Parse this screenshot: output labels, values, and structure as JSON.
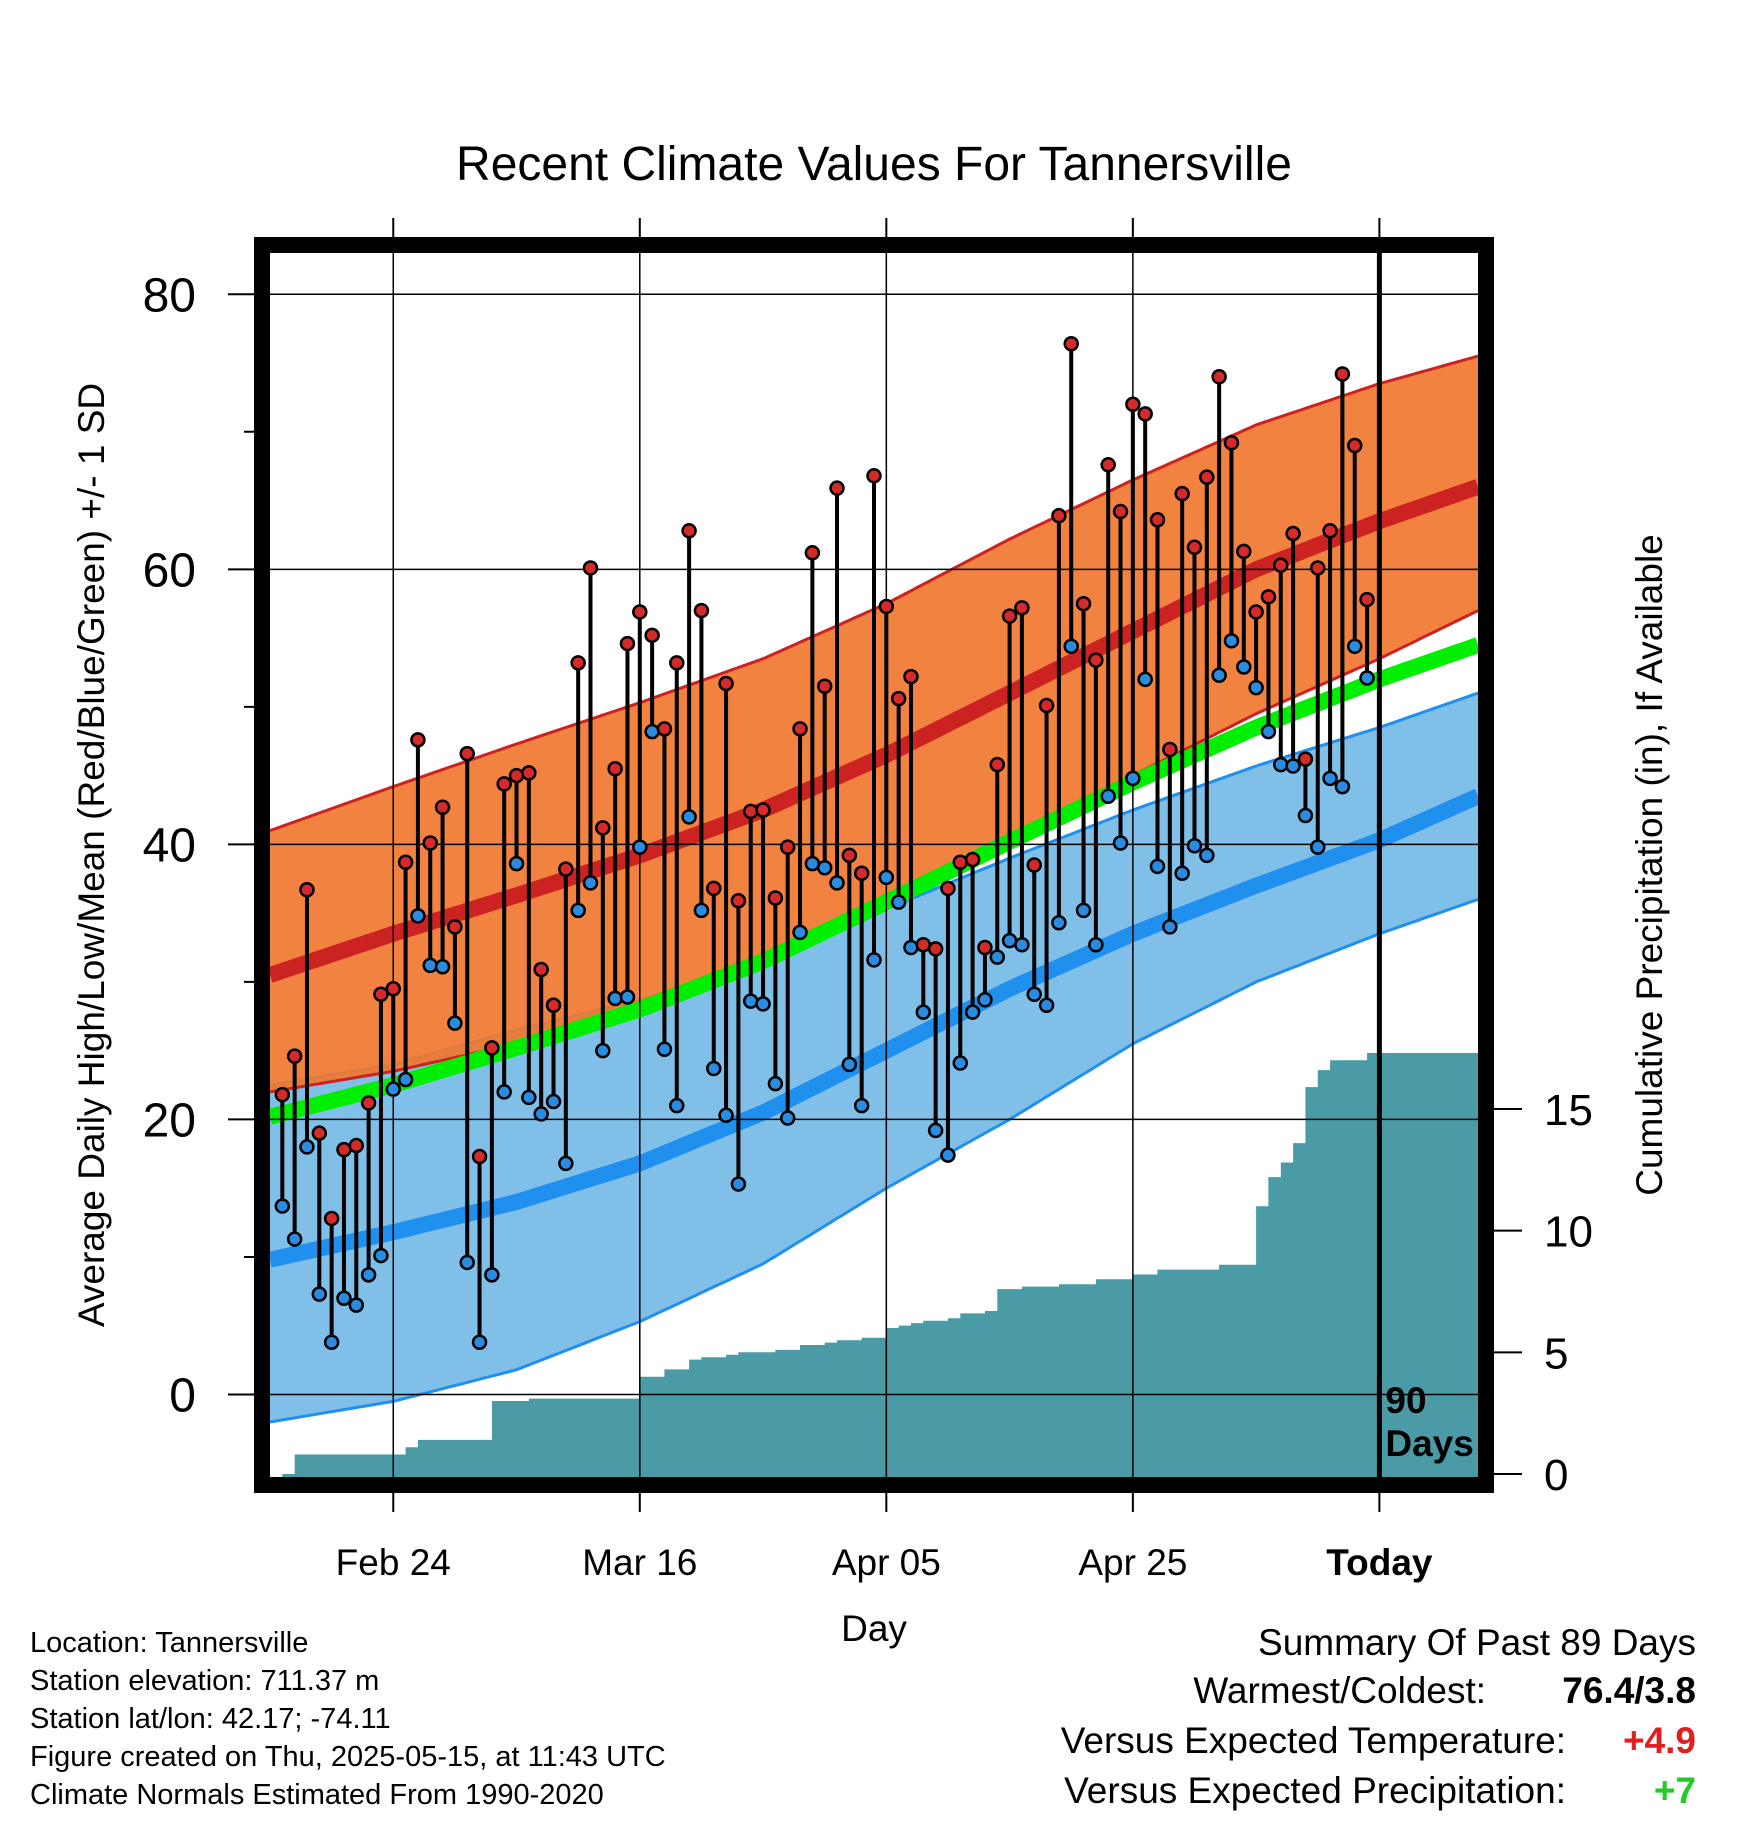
{
  "title": "Recent Climate Values For Tannersville",
  "colors": {
    "orange_band": "#f07830",
    "red_mean": "#cc2222",
    "blue_band": "#80c0e8",
    "blue_mean": "#2090ee",
    "green_mean": "#00ee00",
    "precip_fill": "#4a9ba5",
    "warm_text": "#e02020",
    "wet_text": "#22cc22"
  },
  "info": {
    "location": "Location: Tannersville",
    "elevation": "Station elevation: 711.37 m",
    "latlon": "Station lat/lon: 42.17; -74.11",
    "created": "Figure created on Thu, 2025-05-15, at 11:43 UTC",
    "normals": "Climate Normals Estimated From 1990-2020"
  },
  "summary": {
    "heading": "Summary Of Past 89 Days",
    "warmest_label": "Warmest/Coldest:",
    "warmest_value": "76.4/3.8",
    "temp_label": "Versus Expected Temperature:",
    "temp_value": "+4.9",
    "precip_label": "Versus Expected Precipitation:",
    "precip_value": "+7"
  },
  "chart_data": {
    "type": "line",
    "title": "Recent Climate Values For Tannersville",
    "xlabel": "Day",
    "ylabel": "Average Daily High/Low/Mean (Red/Blue/Green) +/- 1 SD",
    "y2label": "Cumulative Precipitation (in), If Available",
    "xlim": [
      -89,
      9
    ],
    "ylim": [
      -6,
      83
    ],
    "y2lim": [
      0,
      20
    ],
    "x_ticks": [
      {
        "x": -79,
        "label": "Feb 24"
      },
      {
        "x": -59,
        "label": "Mar 16"
      },
      {
        "x": -39,
        "label": "Apr 05"
      },
      {
        "x": -19,
        "label": "Apr 25"
      },
      {
        "x": 1,
        "label": "Today"
      }
    ],
    "y_ticks": [
      0,
      20,
      40,
      60,
      80
    ],
    "y_minor_ticks": [
      10,
      30,
      50,
      70
    ],
    "y2_ticks": [
      0,
      5,
      10,
      15
    ],
    "grid": true,
    "today_marker": {
      "x": 1,
      "label": "90 Days"
    },
    "normals": {
      "x": [
        -89,
        -79,
        -69,
        -59,
        -49,
        -39,
        -29,
        -19,
        -9,
        1,
        9
      ],
      "high_mean": [
        30.5,
        33.5,
        36.3,
        39.2,
        42.5,
        46.5,
        51.0,
        55.5,
        60.0,
        63.5,
        66.0
      ],
      "high_upper": [
        41.0,
        44.2,
        47.3,
        50.3,
        53.5,
        57.5,
        62.2,
        66.5,
        70.5,
        73.5,
        75.5
      ],
      "high_lower": [
        22.0,
        23.5,
        25.5,
        28.0,
        31.5,
        35.5,
        40.0,
        45.0,
        49.5,
        53.5,
        57.0
      ],
      "low_mean": [
        9.8,
        11.8,
        14.0,
        16.8,
        20.5,
        25.0,
        29.5,
        33.5,
        37.0,
        40.3,
        43.5
      ],
      "low_upper": [
        22.5,
        24.0,
        26.5,
        28.7,
        31.5,
        35.3,
        39.0,
        42.5,
        45.7,
        48.5,
        51.0
      ],
      "low_lower": [
        -2.0,
        -0.5,
        1.8,
        5.3,
        9.5,
        15.0,
        20.0,
        25.5,
        30.0,
        33.5,
        36.0
      ],
      "avg_mean": [
        20.2,
        22.5,
        25.2,
        28.0,
        31.5,
        35.8,
        40.2,
        44.5,
        48.5,
        52.0,
        54.5
      ]
    },
    "series": [
      {
        "name": "Daily High",
        "x": [
          -88,
          -87,
          -86,
          -85,
          -84,
          -83,
          -82,
          -81,
          -80,
          -79,
          -78,
          -77,
          -76,
          -75,
          -74,
          -73,
          -72,
          -71,
          -70,
          -69,
          -68,
          -67,
          -66,
          -65,
          -64,
          -63,
          -62,
          -61,
          -60,
          -59,
          -58,
          -57,
          -56,
          -55,
          -54,
          -53,
          -52,
          -51,
          -50,
          -49,
          -48,
          -47,
          -46,
          -45,
          -44,
          -43,
          -42,
          -41,
          -40,
          -39,
          -38,
          -37,
          -36,
          -35,
          -34,
          -33,
          -32,
          -31,
          -30,
          -29,
          -28,
          -27,
          -26,
          -25,
          -24,
          -23,
          -22,
          -21,
          -20,
          -19,
          -18,
          -17,
          -16,
          -15,
          -14,
          -13,
          -12,
          -11,
          -10,
          -9,
          -8,
          -7,
          -6,
          -5,
          -4,
          -3,
          -2,
          -1,
          0
        ],
        "values": [
          21.8,
          24.6,
          36.7,
          19.0,
          12.8,
          17.8,
          18.1,
          21.2,
          29.1,
          29.5,
          38.7,
          47.6,
          40.1,
          42.7,
          34.0,
          46.6,
          17.3,
          25.2,
          44.4,
          45.0,
          45.2,
          30.9,
          28.3,
          38.2,
          53.2,
          60.1,
          41.2,
          45.5,
          54.6,
          56.9,
          55.2,
          48.4,
          53.2,
          62.8,
          57.0,
          36.8,
          51.7,
          35.9,
          42.4,
          42.5,
          36.1,
          39.8,
          48.4,
          61.2,
          51.5,
          65.9,
          39.2,
          37.9,
          66.8,
          57.3,
          50.6,
          52.2,
          32.7,
          32.4,
          36.8,
          38.7,
          38.9,
          32.5,
          45.8,
          56.6,
          57.2,
          38.5,
          50.1,
          63.9,
          76.4,
          57.5,
          53.4,
          67.6,
          64.2,
          72.0,
          71.3,
          63.6,
          46.9,
          65.5,
          61.6,
          66.7,
          74.0,
          69.2,
          61.3,
          56.9,
          58.0,
          60.3,
          62.6,
          46.2,
          60.1,
          62.8,
          74.2,
          69.0,
          57.8
        ]
      },
      {
        "name": "Daily Low",
        "values": [
          13.7,
          11.3,
          18.0,
          7.3,
          3.8,
          7.0,
          6.5,
          8.7,
          10.1,
          22.2,
          22.9,
          34.8,
          31.2,
          31.1,
          27.0,
          9.6,
          3.8,
          8.7,
          22.0,
          38.6,
          21.6,
          20.4,
          21.3,
          16.8,
          35.2,
          37.2,
          25.0,
          28.8,
          28.9,
          39.8,
          48.2,
          25.1,
          21.0,
          42.0,
          35.2,
          23.7,
          20.3,
          15.3,
          28.6,
          28.4,
          22.6,
          20.1,
          33.6,
          38.6,
          38.3,
          37.2,
          24.0,
          21.0,
          31.6,
          37.6,
          35.8,
          32.5,
          27.8,
          19.2,
          17.4,
          24.1,
          27.8,
          28.7,
          31.8,
          33.0,
          32.7,
          29.1,
          28.3,
          34.3,
          54.4,
          35.2,
          32.7,
          43.5,
          40.1,
          44.8,
          52.0,
          38.4,
          34.0,
          37.9,
          39.9,
          39.2,
          52.3,
          54.8,
          52.9,
          51.4,
          48.2,
          45.8,
          45.7,
          42.1,
          39.8,
          44.8,
          44.2,
          54.4,
          52.1
        ]
      }
    ],
    "precipitation": {
      "x": [
        -88,
        -87,
        -86,
        -85,
        -80,
        -79,
        -78,
        -77,
        -76,
        -75,
        -74,
        -73,
        -72,
        -71,
        -70,
        -69,
        -68,
        -67,
        -62,
        -61,
        -60,
        -59,
        -58,
        -57,
        -56,
        -55,
        -54,
        -53,
        -52,
        -51,
        -50,
        -49,
        -48,
        -47,
        -46,
        -45,
        -44,
        -43,
        -42,
        -41,
        -40,
        -39,
        -38,
        -37,
        -36,
        -35,
        -34,
        -33,
        -32,
        -31,
        -30,
        -29,
        -28,
        -27,
        -26,
        -25,
        -24,
        -23,
        -22,
        -21,
        -20,
        -19,
        -18,
        -17,
        -16,
        -15,
        -14,
        -13,
        -12,
        -11,
        -10,
        -9,
        -8,
        -7,
        -6,
        -5,
        -4,
        -3,
        -2,
        -1,
        0,
        9
      ],
      "values": [
        0.0,
        0.8,
        0.8,
        0.8,
        0.8,
        0.8,
        1.1,
        1.4,
        1.4,
        1.4,
        1.4,
        1.4,
        1.4,
        3.0,
        3.0,
        3.0,
        3.1,
        3.1,
        3.1,
        3.1,
        3.1,
        4.0,
        4.0,
        4.3,
        4.3,
        4.7,
        4.8,
        4.8,
        4.9,
        5.0,
        5.0,
        5.0,
        5.1,
        5.1,
        5.3,
        5.3,
        5.4,
        5.5,
        5.5,
        5.6,
        5.6,
        6.0,
        6.1,
        6.2,
        6.3,
        6.3,
        6.4,
        6.6,
        6.6,
        6.7,
        7.6,
        7.6,
        7.7,
        7.7,
        7.7,
        7.8,
        7.8,
        7.8,
        8.0,
        8.0,
        8.0,
        8.2,
        8.2,
        8.4,
        8.4,
        8.4,
        8.4,
        8.4,
        8.6,
        8.6,
        8.6,
        11.0,
        12.2,
        12.8,
        13.6,
        15.9,
        16.6,
        17.0,
        17.0,
        17.0,
        17.3,
        17.3
      ]
    }
  }
}
